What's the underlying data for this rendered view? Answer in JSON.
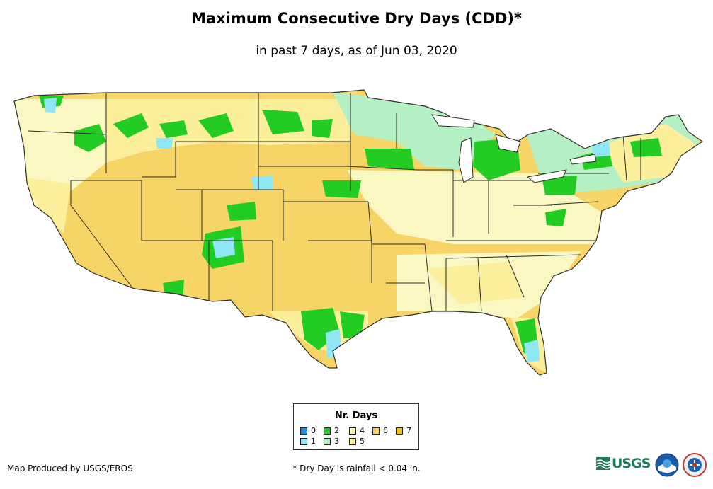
{
  "title": "Maximum Consecutive Dry Days (CDD)*",
  "subtitle": "in past 7 days, as of Jun 03, 2020",
  "legend": {
    "title": "Nr. Days",
    "items": [
      {
        "label": "0",
        "color": "#1e8fe0"
      },
      {
        "label": "1",
        "color": "#8fe6f5"
      },
      {
        "label": "2",
        "color": "#22cc22"
      },
      {
        "label": "3",
        "color": "#b4f0c4"
      },
      {
        "label": "4",
        "color": "#f9f7c2"
      },
      {
        "label": "5",
        "color": "#fcef9c"
      },
      {
        "label": "6",
        "color": "#f6d466"
      },
      {
        "label": "7",
        "color": "#f5c21d"
      }
    ]
  },
  "credit": "Map Produced by USGS/EROS",
  "footnote": "* Dry Day is rainfall < 0.04 in.",
  "logos": {
    "usgs": "USGS",
    "noaa_icon": "noaa-logo-icon",
    "nws_icon": "national-weather-service-logo-icon"
  },
  "map": {
    "region": "Contiguous United States",
    "colors": {
      "land_base": "#f6d466",
      "state_border": "#2a2a2a"
    }
  }
}
